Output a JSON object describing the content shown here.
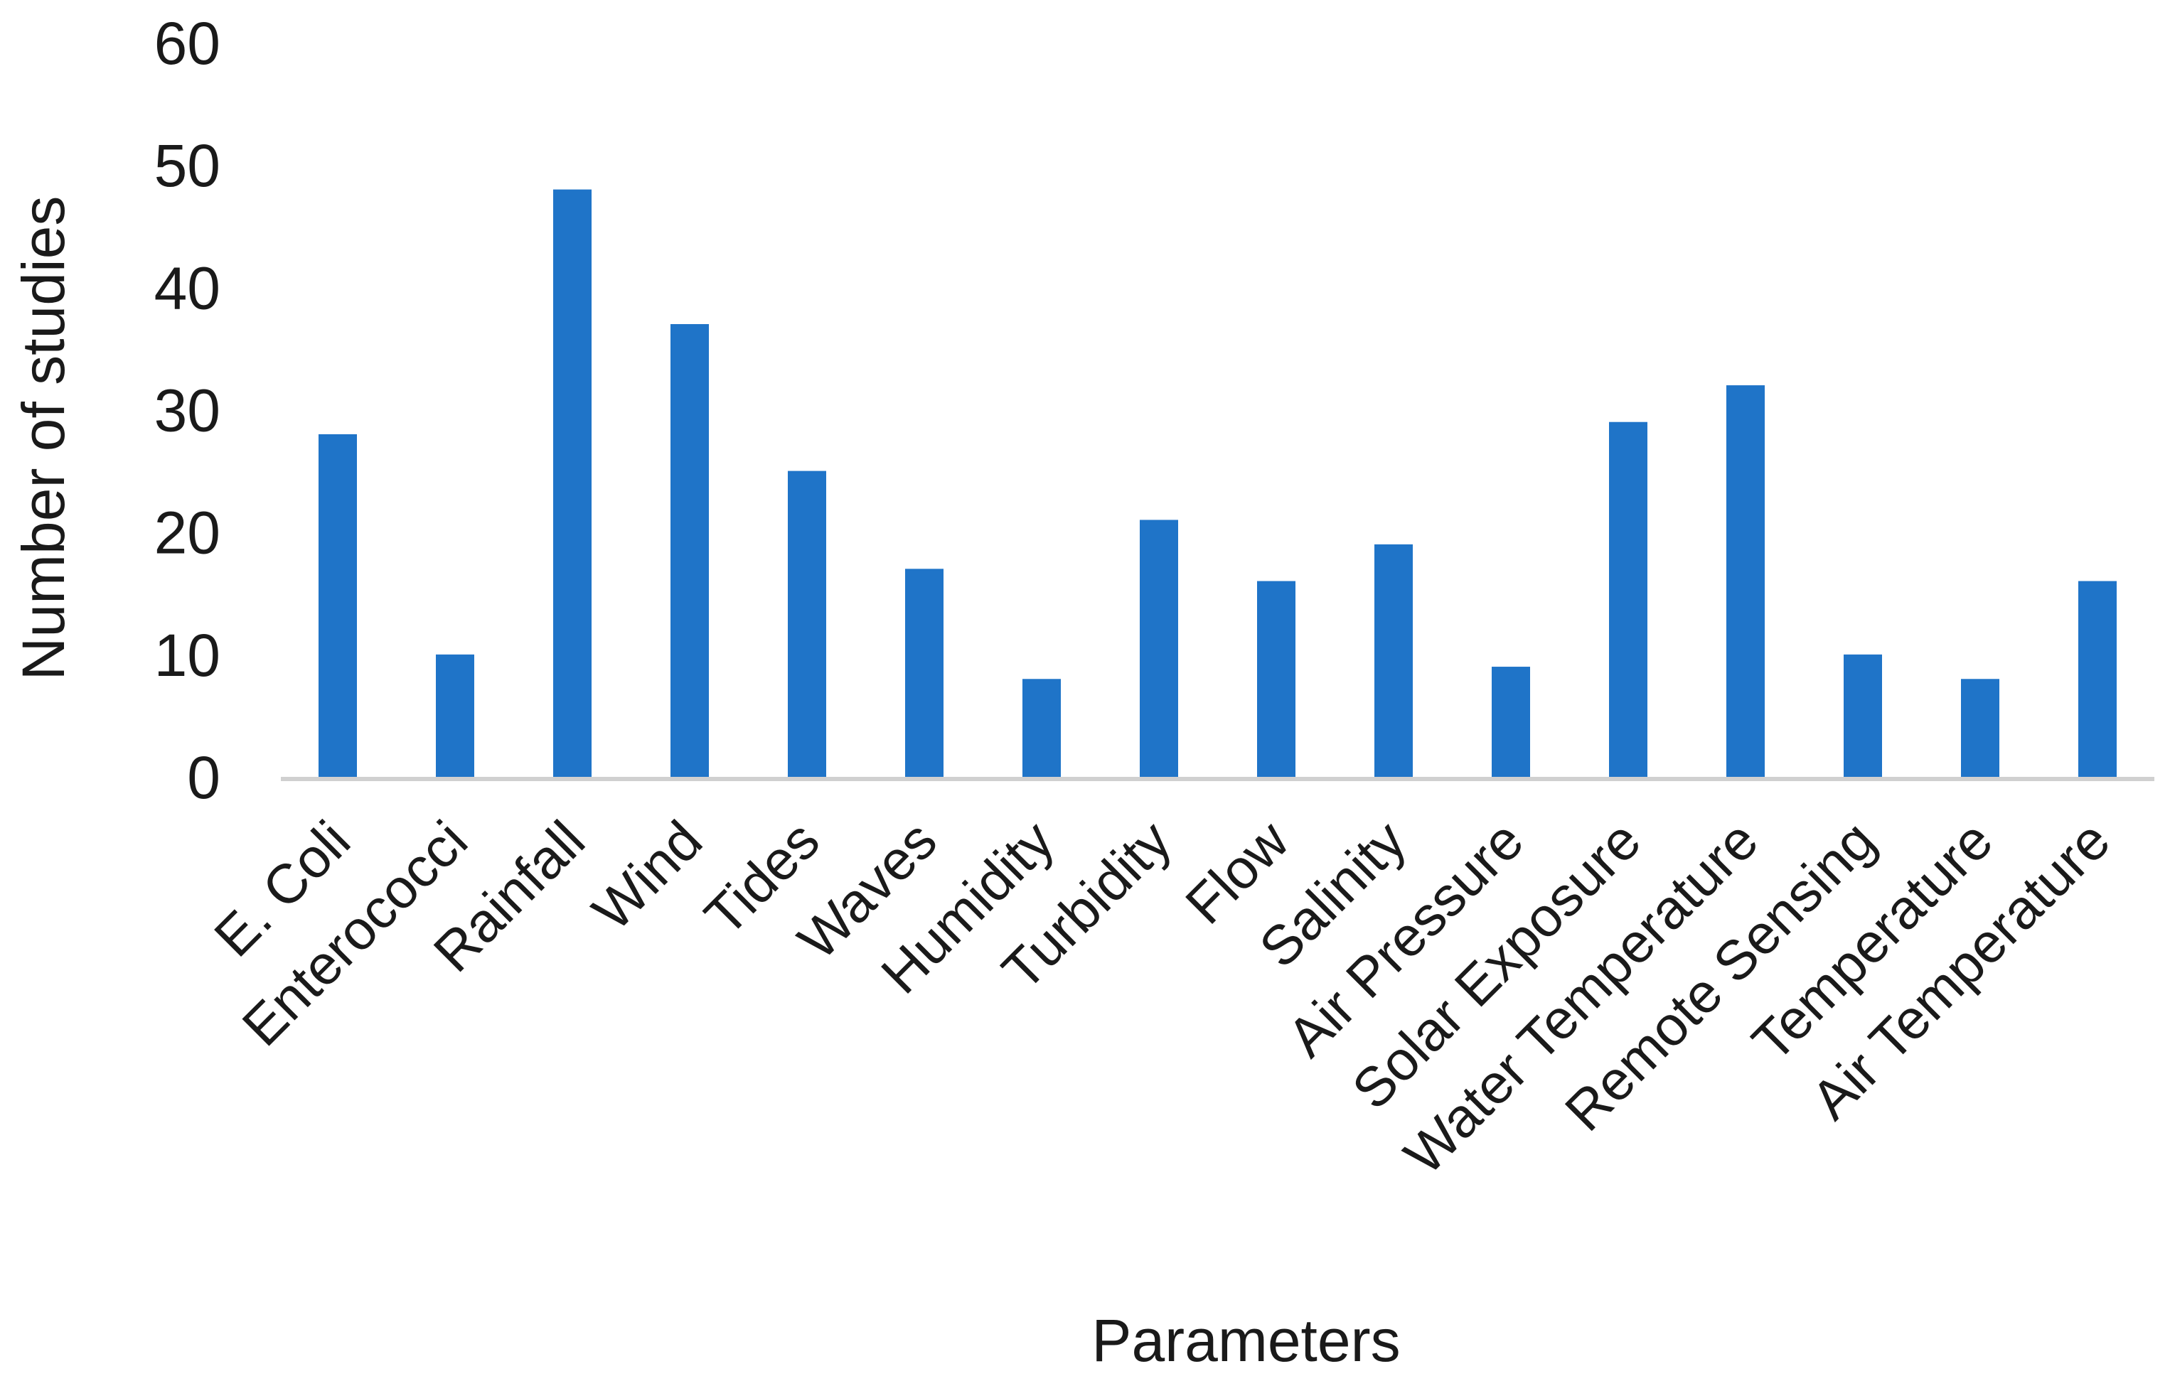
{
  "chart_data": {
    "type": "bar",
    "title": "",
    "xlabel": "Parameters",
    "ylabel": "Number of studies",
    "categories": [
      "E. Coli",
      "Enterococci",
      "Rainfall",
      "Wind",
      "Tides",
      "Waves",
      "Humidity",
      "Turbidity",
      "Flow",
      "Salinity",
      "Air Pressure",
      "Solar Exposure",
      "Water Temperature",
      "Remote Sensing",
      "Temperature",
      "Air Temperature"
    ],
    "values": [
      28,
      10,
      48,
      37,
      25,
      17,
      8,
      21,
      16,
      19,
      9,
      29,
      32,
      10,
      8,
      16
    ],
    "ylim": [
      0,
      60
    ],
    "yticks": [
      0,
      10,
      20,
      30,
      40,
      50,
      60
    ],
    "grid": false,
    "legend": "none",
    "colors": {
      "bar": "#1f74c8",
      "axis": "#d0d0d0",
      "text": "#1a1a1a"
    }
  }
}
